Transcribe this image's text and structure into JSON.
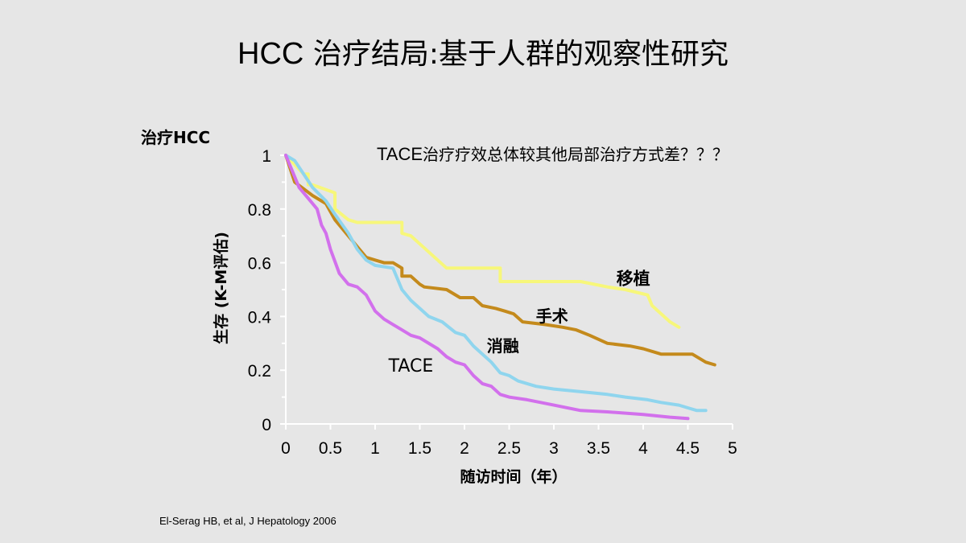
{
  "slide": {
    "title_prefix": "HCC",
    "title_main": " 治疗结局:基于人群的观察性研究",
    "note_prefix": "TACE",
    "note_main": "治疗疗效总体较其他局部治疗方式差？？？",
    "source": "El-Serag HB, et al, J Hepatology 2006"
  },
  "chart_data": {
    "type": "line",
    "title": "治疗HCC",
    "xlabel": "随访时间（年）",
    "ylabel": "生存 (K-M评估)",
    "xlim": [
      0,
      5
    ],
    "ylim": [
      0,
      1
    ],
    "xticks": [
      "0",
      "0.5",
      "1",
      "1.5",
      "2",
      "2.5",
      "3",
      "3.5",
      "4",
      "4.5",
      "5"
    ],
    "yticks": [
      "0",
      "0.2",
      "0.4",
      "0.6",
      "0.8",
      "1"
    ],
    "grid": false,
    "legend": "inline labels",
    "series": [
      {
        "name": "移植",
        "color": "#f7f77a",
        "x": [
          0,
          0.2,
          0.25,
          0.25,
          0.3,
          0.55,
          0.55,
          0.7,
          0.8,
          1.3,
          1.3,
          1.4,
          1.8,
          1.9,
          2.4,
          2.4,
          3.3,
          3.6,
          3.8,
          4.05,
          4.1,
          4.3,
          4.4
        ],
        "y": [
          1,
          0.93,
          0.93,
          0.89,
          0.89,
          0.86,
          0.8,
          0.76,
          0.75,
          0.75,
          0.71,
          0.7,
          0.58,
          0.58,
          0.58,
          0.53,
          0.53,
          0.51,
          0.5,
          0.48,
          0.44,
          0.38,
          0.36
        ]
      },
      {
        "name": "手术",
        "color": "#c48a1c",
        "x": [
          0,
          0.1,
          0.3,
          0.45,
          0.55,
          0.6,
          0.7,
          0.8,
          0.9,
          1.0,
          1.1,
          1.2,
          1.3,
          1.3,
          1.4,
          1.5,
          1.55,
          1.8,
          1.95,
          2.1,
          2.2,
          2.35,
          2.45,
          2.55,
          2.65,
          2.9,
          3.1,
          3.25,
          3.4,
          3.6,
          3.85,
          4.0,
          4.2,
          4.55,
          4.7,
          4.8
        ],
        "y": [
          1,
          0.9,
          0.85,
          0.82,
          0.76,
          0.74,
          0.7,
          0.66,
          0.62,
          0.61,
          0.6,
          0.6,
          0.58,
          0.55,
          0.55,
          0.52,
          0.51,
          0.5,
          0.47,
          0.47,
          0.44,
          0.43,
          0.42,
          0.41,
          0.38,
          0.37,
          0.36,
          0.35,
          0.33,
          0.3,
          0.29,
          0.28,
          0.26,
          0.26,
          0.23,
          0.22
        ]
      },
      {
        "name": "消融",
        "color": "#8fd5ee",
        "x": [
          0,
          0.1,
          0.3,
          0.45,
          0.55,
          0.7,
          0.8,
          0.9,
          1.0,
          1.2,
          1.3,
          1.4,
          1.5,
          1.6,
          1.75,
          1.9,
          2.0,
          2.1,
          2.2,
          2.3,
          2.4,
          2.5,
          2.6,
          2.8,
          3.0,
          3.3,
          3.6,
          3.8,
          4.05,
          4.2,
          4.4,
          4.5,
          4.6,
          4.7
        ],
        "y": [
          1,
          0.98,
          0.88,
          0.83,
          0.78,
          0.71,
          0.65,
          0.61,
          0.59,
          0.58,
          0.5,
          0.46,
          0.43,
          0.4,
          0.38,
          0.34,
          0.33,
          0.29,
          0.26,
          0.23,
          0.19,
          0.18,
          0.16,
          0.14,
          0.13,
          0.12,
          0.11,
          0.1,
          0.09,
          0.08,
          0.07,
          0.06,
          0.05,
          0.05
        ]
      },
      {
        "name": "TACE",
        "color": "#d270ec",
        "x": [
          0,
          0.15,
          0.25,
          0.35,
          0.4,
          0.45,
          0.5,
          0.6,
          0.7,
          0.8,
          0.9,
          1.0,
          1.1,
          1.2,
          1.3,
          1.4,
          1.5,
          1.7,
          1.8,
          1.9,
          2.0,
          2.1,
          2.2,
          2.3,
          2.4,
          2.5,
          2.7,
          3.0,
          3.3,
          3.6,
          4.0,
          4.3,
          4.5
        ],
        "y": [
          1,
          0.88,
          0.84,
          0.8,
          0.74,
          0.71,
          0.65,
          0.56,
          0.52,
          0.51,
          0.48,
          0.42,
          0.39,
          0.37,
          0.35,
          0.33,
          0.32,
          0.28,
          0.25,
          0.23,
          0.22,
          0.18,
          0.15,
          0.14,
          0.11,
          0.1,
          0.09,
          0.07,
          0.05,
          0.045,
          0.035,
          0.025,
          0.02
        ]
      }
    ]
  }
}
